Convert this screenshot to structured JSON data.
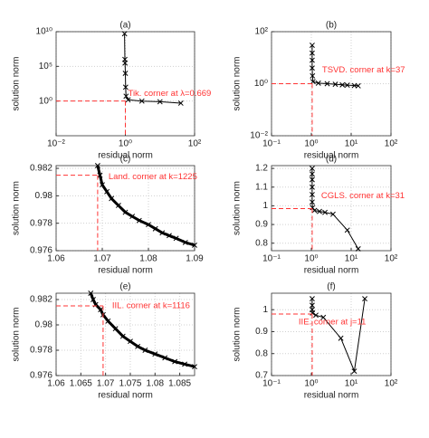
{
  "chart_data": [
    {
      "type": "line",
      "title": "(a)",
      "xlabel": "residual norm",
      "ylabel": "solution norm",
      "xscale": "log",
      "yscale": "log",
      "grid": true,
      "xlim": [
        0.01,
        100
      ],
      "ylim": [
        1e-05,
        10000000000
      ],
      "xticks": [
        {
          "value": 0.01,
          "label": "10⁻²"
        },
        {
          "value": 1,
          "label": "10⁰"
        },
        {
          "value": 100,
          "label": "10²"
        }
      ],
      "yticks": [
        {
          "value": 1,
          "label": "10⁰"
        },
        {
          "value": 100000,
          "label": "10⁵"
        },
        {
          "value": 10000000000,
          "label": "10¹⁰"
        }
      ],
      "series": [
        {
          "color": "#000000",
          "marker": "x",
          "x": [
            0.95,
            0.97,
            0.98,
            1.0,
            1.02,
            1.05,
            1.2,
            3,
            10,
            40
          ],
          "values": [
            5000000000,
            1000000,
            300000,
            10000,
            100,
            5,
            1.5,
            1,
            0.8,
            0.5
          ]
        }
      ],
      "corner": {
        "x": 1,
        "y": 1,
        "color": "#ff3333",
        "label": "Tik. corner at λ=0.669"
      }
    },
    {
      "type": "line",
      "title": "(b)",
      "xlabel": "residual norm",
      "ylabel": "solution norm",
      "xscale": "log",
      "yscale": "log",
      "grid": true,
      "xlim": [
        0.1,
        100
      ],
      "ylim": [
        0.01,
        100
      ],
      "xticks": [
        {
          "value": 0.1,
          "label": "10⁻¹"
        },
        {
          "value": 1,
          "label": "10⁰"
        },
        {
          "value": 10,
          "label": "10¹"
        },
        {
          "value": 100,
          "label": "10²"
        }
      ],
      "yticks": [
        {
          "value": 0.01,
          "label": "10⁻²"
        },
        {
          "value": 1,
          "label": "10⁰"
        },
        {
          "value": 100,
          "label": "10²"
        }
      ],
      "series": [
        {
          "color": "#000000",
          "marker": "x",
          "x": [
            1.05,
            1.05,
            1.05,
            1.05,
            1.07,
            1.1,
            1.5,
            2.5,
            4,
            6,
            8,
            12,
            15
          ],
          "values": [
            30,
            15,
            8,
            4,
            2,
            1.2,
            1.05,
            1,
            0.95,
            0.9,
            0.88,
            0.85,
            0.83
          ]
        }
      ],
      "corner": {
        "x": 1.05,
        "y": 1,
        "color": "#ff3333",
        "label": "TSVD. corner at k=37"
      }
    },
    {
      "type": "line",
      "title": "(c)",
      "xlabel": "residual norm",
      "ylabel": "solution norm",
      "xscale": "linear",
      "yscale": "linear",
      "grid": true,
      "xlim": [
        1.06,
        1.09
      ],
      "ylim": [
        0.976,
        0.9822
      ],
      "xticks": [
        1.06,
        1.07,
        1.08,
        1.09
      ],
      "yticks": [
        0.976,
        0.978,
        0.98,
        0.982
      ],
      "series": [
        {
          "color": "#000000",
          "marker": "x",
          "x": [
            1.069,
            1.0695,
            1.07,
            1.071,
            1.072,
            1.0735,
            1.075,
            1.0765,
            1.078,
            1.08,
            1.0815,
            1.083,
            1.0845,
            1.086,
            1.088,
            1.09
          ],
          "values": [
            0.9822,
            0.9815,
            0.9808,
            0.9803,
            0.9798,
            0.9793,
            0.9788,
            0.9785,
            0.9782,
            0.9779,
            0.9776,
            0.9773,
            0.9771,
            0.9769,
            0.9766,
            0.9764
          ]
        }
      ],
      "corner": {
        "x": 1.069,
        "y": 0.9815,
        "color": "#ff3333",
        "label": "Land. corner at k=1225"
      }
    },
    {
      "type": "line",
      "title": "(d)",
      "xlabel": "residual norm",
      "ylabel": "solution norm",
      "xscale": "log",
      "yscale": "linear",
      "grid": true,
      "xlim": [
        0.1,
        100
      ],
      "ylim": [
        0.76,
        1.215
      ],
      "xticks": [
        {
          "value": 0.1,
          "label": "10⁻¹"
        },
        {
          "value": 1,
          "label": "10⁰"
        },
        {
          "value": 10,
          "label": "10¹"
        },
        {
          "value": 100,
          "label": "10²"
        }
      ],
      "yticks": [
        0.8,
        0.9,
        1,
        1.1,
        1.2
      ],
      "series": [
        {
          "color": "#000000",
          "marker": "x",
          "x": [
            1.05,
            1.05,
            1.05,
            1.05,
            1.05,
            1.05,
            1.07,
            1.2,
            1.6,
            2.2,
            3.5,
            8,
            15
          ],
          "values": [
            1.2,
            1.17,
            1.14,
            1.1,
            1.06,
            1.02,
            0.99,
            0.975,
            0.97,
            0.965,
            0.955,
            0.87,
            0.77
          ]
        }
      ],
      "corner": {
        "x": 1.05,
        "y": 0.985,
        "color": "#ff3333",
        "label": "CGLS. corner at k=31"
      }
    },
    {
      "type": "line",
      "title": "(e)",
      "xlabel": "residual norm",
      "ylabel": "solution norm",
      "xscale": "linear",
      "yscale": "linear",
      "grid": true,
      "xlim": [
        1.06,
        1.088
      ],
      "ylim": [
        0.976,
        0.9825
      ],
      "xticks": [
        1.06,
        1.065,
        1.07,
        1.075,
        1.08,
        1.085
      ],
      "yticks": [
        0.976,
        0.978,
        0.98,
        0.982
      ],
      "series": [
        {
          "color": "#000000",
          "marker": "x",
          "x": [
            1.067,
            1.0675,
            1.068,
            1.069,
            1.0695,
            1.0705,
            1.072,
            1.0735,
            1.075,
            1.0765,
            1.078,
            1.08,
            1.082,
            1.084,
            1.086,
            1.088
          ],
          "values": [
            0.9825,
            0.982,
            0.9816,
            0.9812,
            0.9808,
            0.9803,
            0.9797,
            0.9791,
            0.9787,
            0.9783,
            0.978,
            0.9777,
            0.9774,
            0.9771,
            0.9769,
            0.9767
          ]
        }
      ],
      "corner": {
        "x": 1.0695,
        "y": 0.9815,
        "color": "#ff3333",
        "label": "IIL. corner at k=1116"
      }
    },
    {
      "type": "line",
      "title": "(f)",
      "xlabel": "residual norm",
      "ylabel": "solution norm",
      "xscale": "log",
      "yscale": "linear",
      "grid": true,
      "xlim": [
        0.1,
        100
      ],
      "ylim": [
        0.7,
        1.075
      ],
      "xticks": [
        {
          "value": 0.1,
          "label": "10⁻¹"
        },
        {
          "value": 1,
          "label": "10⁰"
        },
        {
          "value": 10,
          "label": "10¹"
        },
        {
          "value": 100,
          "label": "10²"
        }
      ],
      "yticks": [
        0.7,
        0.8,
        0.9,
        1
      ],
      "series": [
        {
          "color": "#000000",
          "marker": "x",
          "x": [
            1.05,
            1.05,
            1.05,
            1.07,
            1.3,
            2,
            5.5,
            12,
            22
          ],
          "values": [
            1.05,
            1.02,
            1.0,
            0.985,
            0.975,
            0.965,
            0.87,
            0.72,
            1.05
          ]
        }
      ],
      "corner": {
        "x": 1.05,
        "y": 0.98,
        "color": "#ff3333",
        "label": "IIE. corner at j=11"
      }
    }
  ]
}
